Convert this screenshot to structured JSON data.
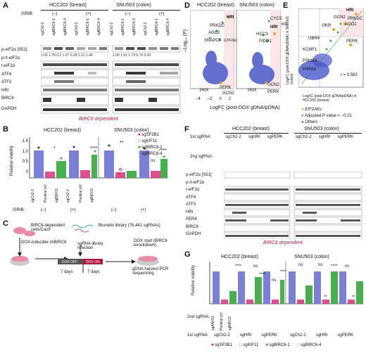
{
  "panelA": {
    "label": "A",
    "group1": "HCC202 (breast)",
    "group2": "SNU503 (colon)",
    "isrib_label": "ISRIB:",
    "isrib_states": [
      "(–)",
      "(+)",
      "(–)",
      "(+)"
    ],
    "lanes": [
      "sgCh2-2",
      "sgBIRC6-1",
      "sgBIRC6-4",
      "sgCh2-2",
      "sgBIRC6-1",
      "sgBIRC6-4",
      "sgCh2-2",
      "sgBIRC6-1",
      "sgBIRC6-4",
      "sgCh2-2",
      "sgBIRC6-1",
      "sgBIRC6-4"
    ],
    "rows": [
      "p-eIF2α [S51]",
      "p-/t-eIF2α",
      "t-eIF2α",
      "ATF4",
      "ATF3",
      "HRI",
      "BIRC6",
      "GAPDH"
    ],
    "ratios1": "1.00 1.78 0.2 1.07 0.28 2.21 1.46",
    "ratios2": "1.00 1.91 1.73 0.70 0.99",
    "footer": "BIRC6 dependent"
  },
  "panelB": {
    "label": "B",
    "group1": "HCC202 (breast)",
    "group2": "SNU503 (colon)",
    "ylabel": "Relative viability",
    "yticks": [
      "0",
      "0.5",
      "1.0",
      "1.5"
    ],
    "xcats": [
      "sgCh2-2",
      "Positive ctrl",
      "sgBIRC6",
      "sgCh2-2",
      "Positive ctrl",
      "sgBIRC6"
    ],
    "isrib_label": "ISRIB:",
    "isrib_states": [
      "(–)",
      "(+)",
      "(–)",
      "(+)"
    ],
    "sig": [
      "*",
      "****",
      "**",
      "ns",
      "****"
    ],
    "legend": [
      "sgSF3B1",
      "sgKIF11",
      "sgBIRC6-1",
      "sgBIRC6-4"
    ]
  },
  "panelC": {
    "label": "C",
    "cells_label": "BIRC6-dependent cells/Cas9",
    "dox_label": "DOX-inducible shBIRC6",
    "library_label": "Brunello library (76,441 sgRNAs)",
    "infection_label": "sgRNA library infection",
    "dox_start": "DOX start (BIRC6 knockdown)",
    "dox_off": "DOX OFF",
    "dox_on": "DOX ON",
    "days1": "7 days",
    "days2": "7 days",
    "harvest": "gDNA harvest PCR sequencing"
  },
  "panelD": {
    "label": "D",
    "title1": "HCC202 (breast)",
    "title2": "SNU503 (colon)",
    "ylabel": "–Log₁₀ (P)",
    "xlabel": "LogFC (post-DOX gDNA/pDNA)",
    "genes1": [
      "HRI",
      "PRKDC",
      "AGO2",
      "SNAPC4",
      "GTF2A2",
      "PKR",
      "PERK",
      "GCN2"
    ],
    "genes2": [
      "CYCS",
      "BID",
      "HRI",
      "HCCS",
      "PIDD1",
      "PKR",
      "GCN2",
      "PERK"
    ],
    "xticks": [
      "–4",
      "–2",
      "0",
      "2"
    ]
  },
  "panelE": {
    "label": "E",
    "ylabel": "LogFC (post-DOX gDNA/pDNA) in SNU503 (colon)",
    "xlabel": "LogFC (post-DOX gDNA/pDNA) in HCC202 (breast)",
    "genes": [
      "HRI",
      "GCN2",
      "PRKDC",
      "AGO2",
      "PKR",
      "UBR4",
      "PERK",
      "KCMF1",
      "PSMB4",
      "HSPA5"
    ],
    "r_label": "r = 0.583",
    "legend": [
      "EIF2AKs",
      "Adjusted P value < −0.01",
      "Others"
    ]
  },
  "panelF": {
    "label": "F",
    "group1": "HCC202 (breast)",
    "group2": "SNU503 (colon)",
    "first_label": "1st sgRNA:",
    "first": [
      "sgCh2-2",
      "sgHRI",
      "sgPERK",
      "sgCh2-2",
      "sgHRI",
      "sgPERK"
    ],
    "second_label": "2ng sgRNA:",
    "rows": [
      "p-eIF2α [S51]",
      "p-/t-eIF2α",
      "t-eIF2α",
      "ATF4",
      "ATF3",
      "HRI",
      "PERK",
      "BIRC6",
      "GAPDH"
    ],
    "footer": "BIRC6 dependent"
  },
  "panelG": {
    "label": "G",
    "group1": "HCC202 (breast)",
    "group2": "SNU503 (colon)",
    "ylabel": "Relative viability",
    "second_label": "2nd sgRNA:",
    "first_label": "1st sgRNA:",
    "first": [
      "sgCh2-2",
      "sgHRI",
      "sgPERK",
      "sgCh2-2",
      "sgHRI",
      "sgPERK"
    ],
    "xcats": [
      "sgAAVS1",
      "Positive ctrl",
      "sgBIRC6"
    ],
    "sig": [
      "****",
      "ns",
      "****",
      "ns",
      "****",
      "ns",
      "ns",
      "****",
      "**",
      "ns",
      "**"
    ],
    "legend": [
      "sgSF3B1",
      "sgKIF11",
      "sgBIRC6-1",
      "sgBIRC6-4"
    ]
  },
  "colors": {
    "blue": "#7b7fd6",
    "pink": "#d6337a",
    "green": "#48b04d",
    "red": "#b0173f",
    "orange": "#f0a030"
  }
}
